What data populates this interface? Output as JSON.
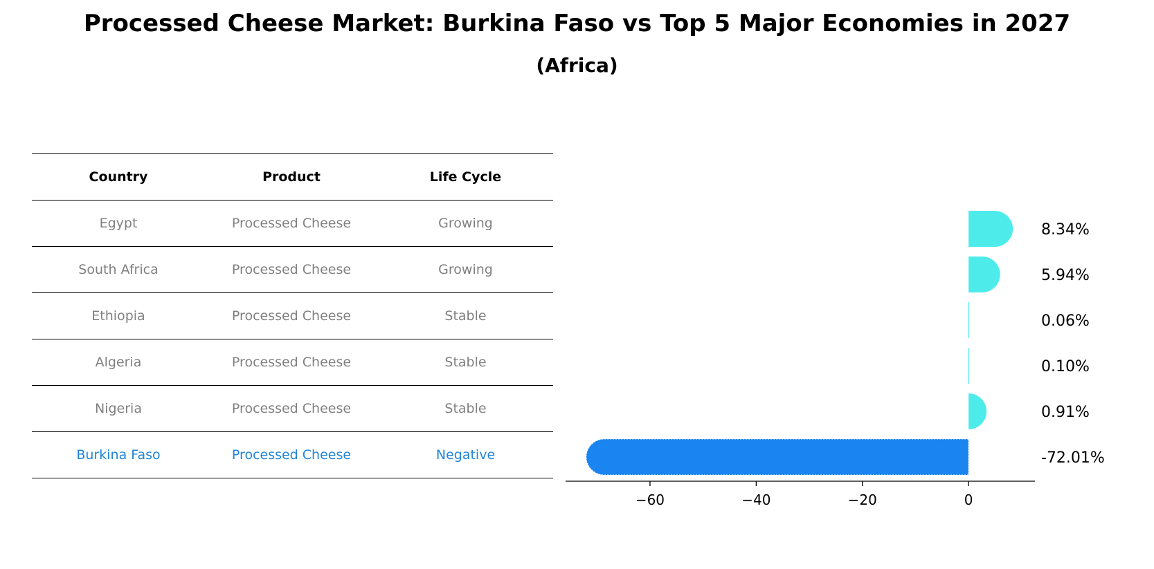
{
  "title": "Processed Cheese Market: Burkina Faso vs Top 5 Major Economies in 2027",
  "subtitle": "(Africa)",
  "table": {
    "headers": [
      "Country",
      "Product",
      "Life Cycle"
    ],
    "rows": [
      [
        "Egypt",
        "Processed Cheese",
        "Growing"
      ],
      [
        "South Africa",
        "Processed Cheese",
        "Growing"
      ],
      [
        "Ethiopia",
        "Processed Cheese",
        "Stable"
      ],
      [
        "Algeria",
        "Processed Cheese",
        "Stable"
      ],
      [
        "Nigeria",
        "Processed Cheese",
        "Stable"
      ],
      [
        "Burkina Faso",
        "Processed Cheese",
        "Negative"
      ]
    ]
  },
  "colors": {
    "positive": "#4eebeb",
    "highlight": "#1a85f0",
    "highlight_text": "#1f85d9",
    "muted_text": "#808080"
  },
  "chart_data": {
    "type": "bar",
    "orientation": "horizontal",
    "categories": [
      "Egypt",
      "South Africa",
      "Ethiopia",
      "Algeria",
      "Nigeria",
      "Burkina Faso"
    ],
    "values": [
      8.34,
      5.94,
      0.06,
      0.1,
      0.91,
      -72.01
    ],
    "value_labels": [
      "8.34%",
      "5.94%",
      "0.06%",
      "0.10%",
      "0.91%",
      "-72.01%"
    ],
    "highlight_category": "Burkina Faso",
    "xlim": [
      -75.9,
      12.5
    ],
    "xticks": [
      -60,
      -40,
      -20,
      0
    ],
    "xtick_labels": [
      "−60",
      "−40",
      "−20",
      "0"
    ],
    "xlabel": "",
    "ylabel": "",
    "grid": false
  }
}
